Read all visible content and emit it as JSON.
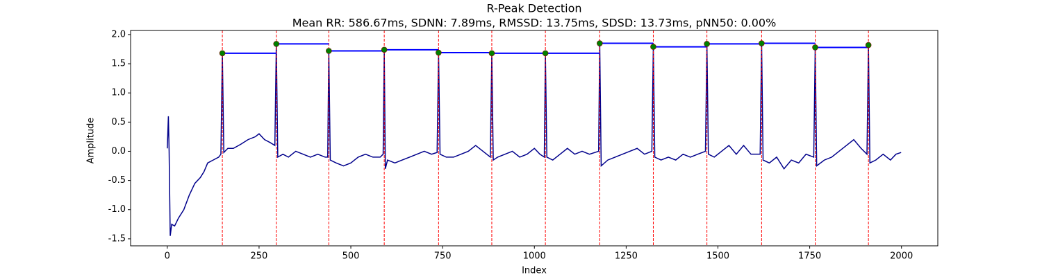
{
  "chart_data": {
    "type": "line",
    "title": "R-Peak Detection",
    "subtitle": "Mean RR: 586.67ms, SDNN: 7.89ms, RMSSD: 13.75ms, SDSD: 13.73ms, pNN50: 0.00%",
    "xlabel": "Index",
    "ylabel": "Amplitude",
    "xlim": [
      -99.95,
      2098.95
    ],
    "ylim": [
      -1.62,
      2.07
    ],
    "xticks": [
      0,
      250,
      500,
      750,
      1000,
      1250,
      1500,
      1750,
      2000
    ],
    "yticks": [
      -1.5,
      {
        "value": -1,
        "label": "-1.0"
      },
      -0.5,
      {
        "value": 0,
        "label": "0.0"
      },
      0.5,
      {
        "value": 1,
        "label": "1.0"
      },
      1.5,
      {
        "value": 2,
        "label": "2.0"
      }
    ],
    "color": "#00008b",
    "x": [
      0,
      3,
      5,
      8,
      12,
      20,
      30,
      45,
      60,
      75,
      90,
      100,
      110,
      125,
      140,
      146,
      150,
      154,
      165,
      180,
      200,
      220,
      240,
      250,
      265,
      280,
      293,
      297,
      301,
      315,
      330,
      350,
      370,
      390,
      410,
      430,
      437,
      440,
      444,
      460,
      480,
      500,
      520,
      540,
      560,
      580,
      588,
      591,
      594,
      600,
      620,
      640,
      660,
      680,
      700,
      720,
      735,
      739,
      743,
      760,
      780,
      800,
      820,
      840,
      860,
      880,
      884,
      888,
      900,
      920,
      940,
      960,
      980,
      1000,
      1015,
      1027,
      1030,
      1034,
      1050,
      1070,
      1090,
      1110,
      1130,
      1150,
      1175,
      1178,
      1182,
      1200,
      1220,
      1240,
      1260,
      1280,
      1300,
      1320,
      1324,
      1328,
      1345,
      1365,
      1385,
      1405,
      1425,
      1445,
      1466,
      1470,
      1474,
      1490,
      1510,
      1530,
      1550,
      1570,
      1590,
      1615,
      1619,
      1623,
      1640,
      1660,
      1680,
      1700,
      1720,
      1740,
      1761,
      1765,
      1769,
      1790,
      1810,
      1830,
      1850,
      1870,
      1890,
      1906,
      1910,
      1914,
      1930,
      1950,
      1970,
      1985,
      1999
    ],
    "values": [
      0.05,
      0.6,
      0.0,
      -1.45,
      -1.25,
      -1.28,
      -1.15,
      -1.0,
      -0.75,
      -0.55,
      -0.45,
      -0.35,
      -0.2,
      -0.15,
      -0.1,
      -0.05,
      1.68,
      -0.02,
      0.05,
      0.05,
      0.12,
      0.2,
      0.25,
      0.3,
      0.2,
      0.15,
      0.1,
      1.84,
      -0.1,
      -0.05,
      -0.1,
      0.0,
      -0.05,
      -0.1,
      -0.05,
      -0.1,
      -0.1,
      1.72,
      -0.15,
      -0.2,
      -0.25,
      -0.2,
      -0.1,
      -0.05,
      -0.1,
      -0.1,
      -0.05,
      1.74,
      -0.3,
      -0.15,
      -0.2,
      -0.15,
      -0.1,
      -0.05,
      0.0,
      -0.05,
      -0.02,
      1.69,
      -0.05,
      -0.1,
      -0.1,
      -0.05,
      0.0,
      0.1,
      0.0,
      -0.1,
      1.68,
      -0.15,
      -0.1,
      -0.05,
      0.0,
      -0.1,
      -0.05,
      0.05,
      -0.05,
      -0.1,
      1.68,
      -0.1,
      -0.15,
      -0.05,
      0.05,
      -0.05,
      0.0,
      -0.05,
      0.0,
      1.85,
      -0.25,
      -0.15,
      -0.1,
      -0.05,
      0.0,
      0.05,
      -0.05,
      0.0,
      1.79,
      -0.1,
      -0.15,
      -0.1,
      -0.15,
      -0.05,
      -0.1,
      -0.05,
      0.0,
      1.84,
      -0.05,
      -0.1,
      0.0,
      0.1,
      -0.05,
      0.1,
      -0.05,
      -0.05,
      1.85,
      -0.15,
      -0.2,
      -0.1,
      -0.3,
      -0.15,
      -0.2,
      -0.05,
      -0.1,
      1.78,
      -0.25,
      -0.15,
      -0.1,
      0.0,
      0.1,
      0.2,
      0.05,
      -0.05,
      1.82,
      -0.2,
      -0.15,
      -0.05,
      -0.15,
      -0.05,
      -0.02
    ],
    "peaks": {
      "x": [
        150,
        297,
        440,
        591,
        739,
        884,
        1030,
        1178,
        1324,
        1470,
        1619,
        1765,
        1910
      ],
      "values": [
        1.68,
        1.84,
        1.72,
        1.74,
        1.69,
        1.68,
        1.68,
        1.85,
        1.79,
        1.84,
        1.85,
        1.78,
        1.82
      ],
      "color": "#008000",
      "edge_color": "#8b0000",
      "marker_line_color": "#ff0000",
      "rr_line_color": "#0000ff"
    }
  }
}
